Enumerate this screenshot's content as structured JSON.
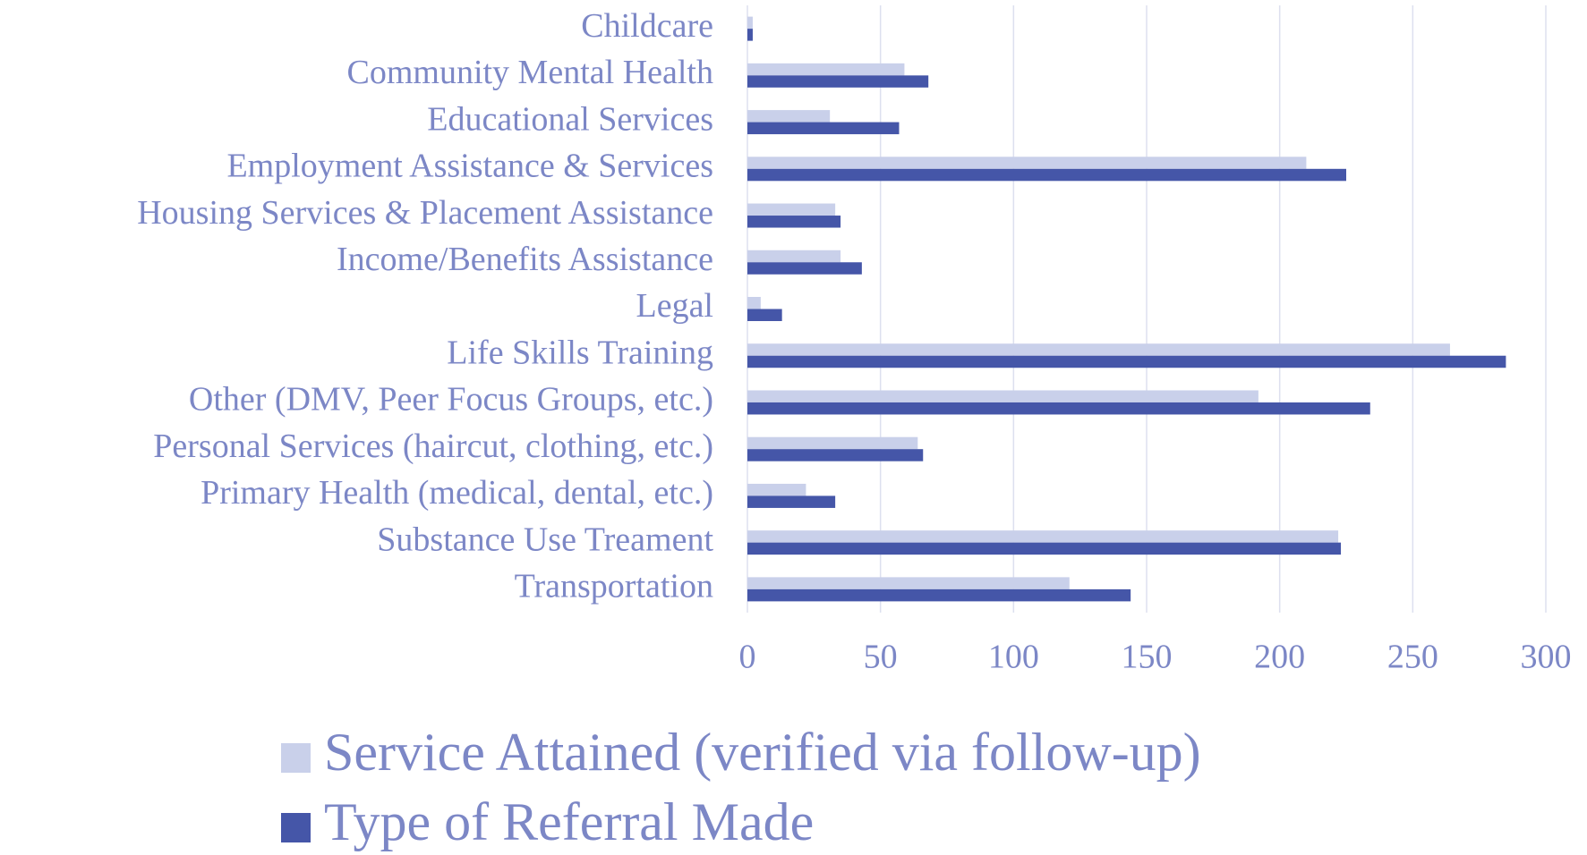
{
  "chart_data": {
    "type": "barh",
    "categories": [
      "Childcare",
      "Community Mental Health",
      "Educational Services",
      "Employment Assistance & Services",
      "Housing Services & Placement Assistance",
      "Income/Benefits Assistance",
      "Legal",
      "Life Skills Training",
      "Other (DMV, Peer Focus Groups, etc.)",
      "Personal Services (haircut, clothing, etc.)",
      "Primary Health (medical, dental, etc.)",
      "Substance Use Treament",
      "Transportation"
    ],
    "series": [
      {
        "name": "Service Attained (verified via follow-up)",
        "color": "#c9d0ea",
        "values": [
          2,
          59,
          31,
          210,
          33,
          35,
          5,
          264,
          192,
          64,
          22,
          222,
          121
        ]
      },
      {
        "name": "Type of Referral Made",
        "color": "#4556a8",
        "values": [
          2,
          68,
          57,
          225,
          35,
          43,
          13,
          285,
          234,
          66,
          33,
          223,
          144
        ]
      }
    ],
    "xlim": [
      0,
      300
    ],
    "xticks": [
      0,
      50,
      100,
      150,
      200,
      250,
      300
    ],
    "grid": true
  }
}
